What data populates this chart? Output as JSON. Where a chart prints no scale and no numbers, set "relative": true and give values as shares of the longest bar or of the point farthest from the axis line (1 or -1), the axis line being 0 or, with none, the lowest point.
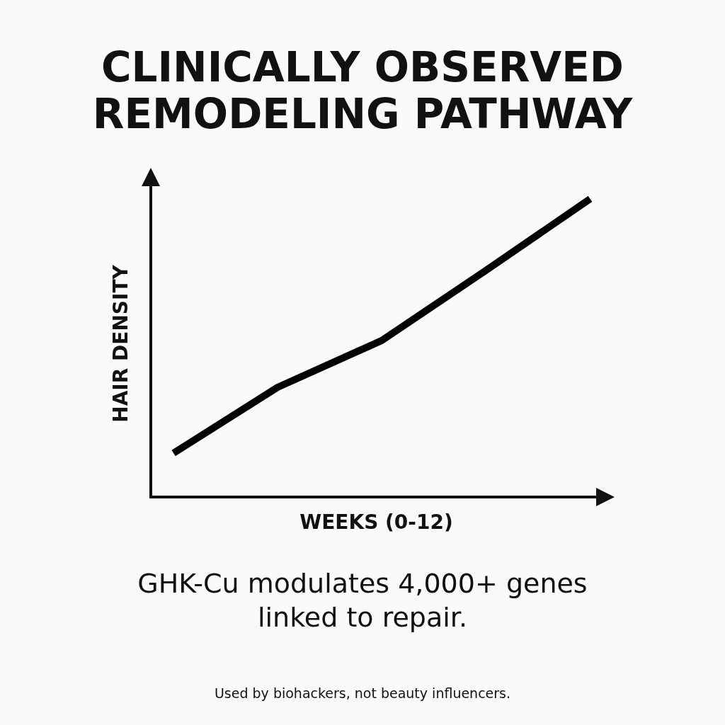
{
  "chart_data": {
    "type": "line",
    "title": "CLINICALLY OBSERVED REMODELING PATHWAY",
    "xlabel": "WEEKS (0-12)",
    "ylabel": "HAIR DENSITY",
    "relative": true,
    "categories": [
      null,
      null,
      null,
      null,
      null
    ],
    "values": [
      0.147,
      0.368,
      0.525,
      0.76,
      1
    ],
    "color": "#000000",
    "marker": "none",
    "line_style": "solid",
    "annotations": [
      "GHK-Cu modulates 4,000+ genes linked to repair.",
      "Used by biohackers, not beauty influencers."
    ]
  }
}
